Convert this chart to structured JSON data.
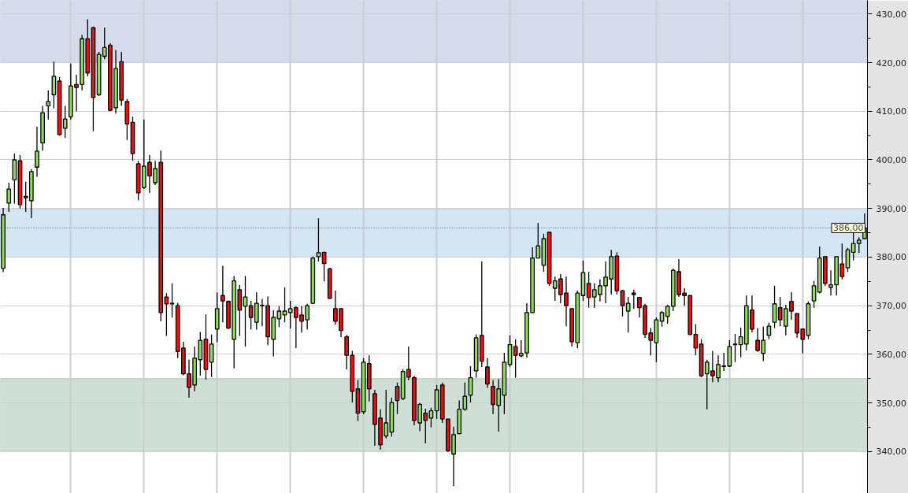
{
  "chart_data": {
    "type": "candlestick",
    "categories": [
      null,
      null,
      null,
      null,
      null,
      null,
      null,
      null,
      null,
      null,
      null,
      null,
      null,
      null,
      null,
      null,
      null,
      null,
      null,
      null,
      null,
      null,
      null,
      null,
      null,
      null,
      null,
      null,
      null,
      null,
      null,
      null,
      null,
      null,
      null,
      null,
      null,
      null,
      null,
      null,
      null,
      null,
      null,
      null,
      null,
      null,
      null,
      null,
      null,
      null,
      null,
      null,
      null,
      null,
      null,
      null,
      null,
      null,
      null,
      null,
      null,
      null,
      null,
      null,
      null,
      null,
      null,
      null,
      null,
      null,
      null,
      null,
      null,
      null,
      null,
      null,
      null,
      null,
      null,
      null,
      null,
      null,
      null,
      null,
      null,
      null,
      null,
      null,
      null,
      null,
      null,
      null,
      null,
      null,
      null,
      null,
      null,
      null,
      null,
      null,
      null,
      null,
      null,
      null,
      null,
      null,
      null,
      null,
      null,
      null,
      null,
      null,
      null,
      null,
      null,
      null,
      null,
      null,
      null,
      null,
      null,
      null,
      null,
      null,
      null,
      null,
      null,
      null,
      null,
      null,
      null,
      null,
      null,
      null,
      null,
      null,
      null,
      null,
      null,
      null,
      null,
      null,
      null,
      null,
      null,
      null,
      null,
      null,
      null,
      null,
      null,
      null,
      null,
      null
    ],
    "ohlc": [
      [
        377.7,
        390.1,
        376.9,
        388.7
      ],
      [
        391.1,
        395.3,
        389.3,
        394.0
      ],
      [
        395.9,
        401.3,
        391.0,
        400.0
      ],
      [
        399.8,
        401.0,
        390.0,
        390.8
      ],
      [
        392.5,
        395.5,
        389.3,
        392.2
      ],
      [
        391.6,
        398.1,
        388.0,
        397.6
      ],
      [
        398.5,
        406.8,
        396.5,
        401.8
      ],
      [
        403.5,
        411.1,
        401.9,
        409.7
      ],
      [
        411.1,
        414.3,
        408.3,
        412.0
      ],
      [
        413.4,
        420.2,
        410.6,
        417.2
      ],
      [
        416.2,
        417.0,
        405.0,
        405.2
      ],
      [
        406.5,
        411.1,
        404.5,
        408.4
      ],
      [
        408.9,
        419.8,
        408.3,
        415.2
      ],
      [
        415.5,
        417.5,
        410.0,
        414.9
      ],
      [
        415.5,
        425.7,
        414.3,
        424.9
      ],
      [
        424.9,
        428.9,
        417.2,
        417.9
      ],
      [
        427.2,
        427.4,
        405.9,
        412.8
      ],
      [
        413.4,
        422.2,
        413.1,
        421.7
      ],
      [
        421.3,
        427.2,
        420.7,
        423.1
      ],
      [
        423.6,
        424.0,
        410.0,
        410.2
      ],
      [
        410.7,
        422.6,
        409.5,
        418.8
      ],
      [
        420.2,
        422.2,
        411.1,
        412.3
      ],
      [
        412.0,
        412.5,
        404.1,
        407.4
      ],
      [
        407.7,
        408.9,
        399.8,
        401.3
      ],
      [
        399.2,
        399.8,
        391.7,
        393.2
      ],
      [
        394.3,
        408.3,
        394.0,
        398.7
      ],
      [
        399.5,
        401.0,
        393.2,
        396.7
      ],
      [
        395.3,
        399.8,
        394.8,
        398.2
      ],
      [
        399.5,
        401.9,
        366.8,
        368.6
      ],
      [
        371.8,
        372.6,
        363.8,
        370.4
      ],
      [
        370.5,
        374.6,
        367.6,
        370.4
      ],
      [
        370.0,
        370.6,
        359.2,
        360.6
      ],
      [
        361.3,
        362.6,
        355.7,
        356.0
      ],
      [
        356.0,
        358.9,
        351.1,
        353.2
      ],
      [
        353.7,
        361.6,
        352.4,
        359.2
      ],
      [
        358.9,
        364.6,
        355.6,
        362.9
      ],
      [
        363.1,
        368.2,
        354.8,
        356.9
      ],
      [
        358.4,
        364.1,
        355.3,
        362.1
      ],
      [
        365.2,
        372.7,
        362.5,
        369.4
      ],
      [
        372.1,
        378.2,
        366.6,
        371.0
      ],
      [
        370.9,
        371.1,
        365.2,
        365.4
      ],
      [
        363.1,
        376.1,
        357.1,
        375.1
      ],
      [
        373.3,
        374.3,
        363.8,
        369.1
      ],
      [
        369.9,
        376.1,
        361.6,
        371.8
      ],
      [
        370.0,
        371.0,
        365.1,
        367.6
      ],
      [
        366.6,
        372.8,
        365.1,
        370.5
      ],
      [
        370.0,
        371.4,
        365.8,
        370.1
      ],
      [
        370.0,
        371.9,
        361.9,
        363.6
      ],
      [
        363.1,
        369.1,
        359.6,
        367.6
      ],
      [
        367.3,
        369.9,
        365.6,
        368.9
      ],
      [
        368.1,
        373.8,
        366.6,
        368.9
      ],
      [
        368.6,
        371.0,
        365.3,
        369.4
      ],
      [
        369.6,
        369.9,
        361.3,
        367.6
      ],
      [
        368.1,
        369.9,
        364.5,
        366.8
      ],
      [
        367.1,
        370.4,
        365.1,
        370.0
      ],
      [
        370.5,
        380.1,
        370.4,
        379.8
      ],
      [
        380.1,
        388.0,
        379.1,
        380.9
      ],
      [
        381.0,
        381.0,
        375.0,
        378.7
      ],
      [
        377.6,
        377.8,
        371.4,
        371.5
      ],
      [
        369.4,
        373.1,
        366.1,
        366.8
      ],
      [
        369.4,
        369.4,
        363.5,
        364.9
      ],
      [
        363.6,
        364.0,
        356.9,
        359.8
      ],
      [
        359.8,
        360.7,
        350.1,
        352.4
      ],
      [
        352.9,
        354.7,
        346.3,
        347.9
      ],
      [
        348.2,
        359.2,
        347.7,
        358.4
      ],
      [
        358.1,
        359.8,
        350.3,
        352.9
      ],
      [
        351.9,
        352.7,
        341.2,
        345.6
      ],
      [
        346.9,
        348.7,
        340.4,
        341.4
      ],
      [
        343.2,
        352.7,
        342.7,
        345.9
      ],
      [
        344.0,
        351.1,
        343.1,
        350.1
      ],
      [
        353.4,
        354.2,
        347.7,
        350.5
      ],
      [
        350.9,
        356.9,
        350.6,
        356.5
      ],
      [
        356.9,
        361.6,
        354.7,
        355.3
      ],
      [
        355.2,
        355.6,
        345.4,
        346.4
      ],
      [
        345.9,
        350.0,
        344.2,
        349.7
      ],
      [
        347.9,
        348.8,
        341.7,
        346.4
      ],
      [
        346.9,
        349.0,
        345.0,
        348.4
      ],
      [
        348.4,
        353.7,
        346.7,
        352.7
      ],
      [
        353.7,
        354.2,
        345.9,
        346.7
      ],
      [
        346.7,
        346.7,
        339.9,
        340.2
      ],
      [
        339.5,
        345.1,
        332.9,
        343.5
      ],
      [
        343.7,
        350.5,
        343.6,
        348.7
      ],
      [
        348.7,
        354.2,
        348.4,
        351.4
      ],
      [
        351.6,
        357.6,
        350.1,
        355.2
      ],
      [
        356.6,
        364.1,
        355.2,
        363.4
      ],
      [
        363.9,
        379.1,
        357.4,
        358.6
      ],
      [
        357.4,
        359.2,
        353.1,
        353.9
      ],
      [
        353.4,
        354.7,
        347.7,
        349.7
      ],
      [
        349.5,
        354.9,
        344.1,
        352.9
      ],
      [
        351.6,
        360.3,
        347.7,
        358.4
      ],
      [
        357.9,
        363.9,
        357.4,
        362.0
      ],
      [
        361.6,
        363.1,
        355.2,
        359.8
      ],
      [
        359.7,
        362.9,
        359.4,
        360.2
      ],
      [
        360.3,
        370.5,
        359.3,
        368.6
      ],
      [
        368.6,
        382.0,
        368.5,
        379.8
      ],
      [
        379.8,
        387.0,
        379.7,
        382.3
      ],
      [
        378.3,
        384.8,
        377.0,
        383.8
      ],
      [
        385.1,
        385.1,
        374.1,
        374.6
      ],
      [
        373.6,
        376.0,
        371.0,
        375.1
      ],
      [
        375.5,
        376.5,
        370.5,
        372.3
      ],
      [
        372.6,
        376.0,
        365.8,
        370.0
      ],
      [
        369.4,
        369.4,
        361.6,
        362.6
      ],
      [
        362.4,
        373.1,
        361.3,
        372.6
      ],
      [
        372.1,
        379.3,
        371.0,
        376.8
      ],
      [
        374.6,
        377.0,
        369.6,
        371.7
      ],
      [
        371.8,
        374.6,
        369.6,
        373.3
      ],
      [
        372.3,
        375.4,
        370.9,
        374.1
      ],
      [
        374.1,
        379.1,
        370.5,
        375.9
      ],
      [
        375.5,
        381.5,
        372.3,
        380.1
      ],
      [
        380.2,
        381.0,
        372.3,
        373.1
      ],
      [
        373.1,
        373.3,
        367.8,
        370.0
      ],
      [
        368.9,
        371.8,
        364.5,
        370.5
      ],
      [
        372.6,
        373.3,
        369.4,
        372.3
      ],
      [
        371.7,
        371.8,
        367.6,
        369.6
      ],
      [
        370.0,
        370.4,
        363.4,
        364.1
      ],
      [
        364.4,
        365.4,
        359.8,
        362.9
      ],
      [
        362.4,
        367.6,
        358.4,
        367.1
      ],
      [
        366.8,
        368.9,
        365.7,
        368.6
      ],
      [
        367.8,
        370.2,
        366.3,
        369.9
      ],
      [
        369.9,
        377.6,
        368.9,
        377.3
      ],
      [
        377.0,
        379.6,
        371.8,
        372.3
      ],
      [
        372.6,
        373.6,
        370.0,
        372.1
      ],
      [
        372.1,
        372.1,
        363.9,
        364.1
      ],
      [
        364.1,
        366.2,
        359.8,
        361.3
      ],
      [
        362.1,
        363.1,
        355.3,
        355.6
      ],
      [
        356.0,
        358.9,
        348.7,
        358.4
      ],
      [
        356.6,
        360.7,
        354.3,
        355.6
      ],
      [
        355.2,
        359.8,
        354.3,
        357.9
      ],
      [
        357.5,
        360.3,
        356.6,
        357.6
      ],
      [
        357.6,
        362.9,
        357.4,
        361.6
      ],
      [
        362.0,
        364.2,
        358.4,
        362.1
      ],
      [
        362.0,
        365.5,
        359.4,
        363.6
      ],
      [
        362.1,
        372.1,
        360.8,
        370.0
      ],
      [
        369.1,
        372.1,
        364.5,
        365.2
      ],
      [
        362.9,
        365.4,
        360.5,
        360.8
      ],
      [
        360.2,
        365.7,
        358.6,
        362.9
      ],
      [
        363.9,
        366.5,
        363.1,
        365.8
      ],
      [
        366.6,
        374.1,
        365.4,
        370.4
      ],
      [
        369.6,
        371.8,
        365.8,
        367.1
      ],
      [
        365.8,
        370.2,
        363.9,
        369.4
      ],
      [
        370.9,
        372.8,
        367.1,
        368.9
      ],
      [
        368.4,
        368.4,
        363.4,
        364.4
      ],
      [
        365.2,
        365.2,
        360.2,
        363.1
      ],
      [
        363.9,
        370.9,
        363.1,
        370.4
      ],
      [
        371.0,
        375.1,
        369.6,
        374.1
      ],
      [
        372.8,
        382.2,
        372.5,
        379.8
      ],
      [
        380.1,
        380.1,
        374.1,
        374.6
      ],
      [
        373.8,
        377.3,
        372.1,
        374.3
      ],
      [
        374.3,
        380.1,
        372.1,
        380.1
      ],
      [
        378.6,
        382.8,
        375.4,
        376.0
      ],
      [
        377.8,
        381.9,
        377.0,
        381.5
      ],
      [
        381.0,
        385.3,
        379.3,
        382.8
      ],
      [
        382.8,
        384.1,
        380.9,
        383.5
      ],
      [
        383.8,
        389.0,
        383.8,
        386.0
      ]
    ],
    "colors": [
      "#90e060",
      "#90e060",
      "#90e060",
      "#ee1111",
      "#ee1111",
      "#90e060",
      "#90e060",
      "#90e060",
      "#90e060",
      "#90e060",
      "#ee1111",
      "#90e060",
      "#90e060",
      "#ee1111",
      "#90e060",
      "#ee1111",
      "#ee1111",
      "#90e060",
      "#90e060",
      "#ee1111",
      "#90e060",
      "#ee1111",
      "#ee1111",
      "#ee1111",
      "#ee1111",
      "#90e060",
      "#ee1111",
      "#90e060",
      "#ee1111",
      "#ee1111",
      "#ee1111",
      "#ee1111",
      "#ee1111",
      "#ee1111",
      "#90e060",
      "#90e060",
      "#ee1111",
      "#90e060",
      "#90e060",
      "#ee1111",
      "#ee1111",
      "#90e060",
      "#ee1111",
      "#90e060",
      "#ee1111",
      "#90e060",
      "#90e060",
      "#ee1111",
      "#90e060",
      "#90e060",
      "#90e060",
      "#90e060",
      "#ee1111",
      "#ee1111",
      "#90e060",
      "#90e060",
      "#90e060",
      "#ee1111",
      "#ee1111",
      "#ee1111",
      "#ee1111",
      "#ee1111",
      "#ee1111",
      "#ee1111",
      "#90e060",
      "#ee1111",
      "#ee1111",
      "#ee1111",
      "#90e060",
      "#90e060",
      "#ee1111",
      "#90e060",
      "#ee1111",
      "#ee1111",
      "#90e060",
      "#ee1111",
      "#90e060",
      "#90e060",
      "#ee1111",
      "#ee1111",
      "#90e060",
      "#90e060",
      "#90e060",
      "#90e060",
      "#90e060",
      "#ee1111",
      "#ee1111",
      "#ee1111",
      "#90e060",
      "#90e060",
      "#90e060",
      "#ee1111",
      "#90e060",
      "#90e060",
      "#90e060",
      "#90e060",
      "#90e060",
      "#ee1111",
      "#90e060",
      "#ee1111",
      "#ee1111",
      "#ee1111",
      "#90e060",
      "#90e060",
      "#ee1111",
      "#90e060",
      "#90e060",
      "#90e060",
      "#90e060",
      "#ee1111",
      "#ee1111",
      "#90e060",
      "#ee1111",
      "#ee1111",
      "#ee1111",
      "#ee1111",
      "#90e060",
      "#90e060",
      "#90e060",
      "#90e060",
      "#ee1111",
      "#ee1111",
      "#ee1111",
      "#ee1111",
      "#ee1111",
      "#90e060",
      "#ee1111",
      "#90e060",
      "#90e060",
      "#90e060",
      "#90e060",
      "#90e060",
      "#90e060",
      "#ee1111",
      "#ee1111",
      "#90e060",
      "#90e060",
      "#90e060",
      "#ee1111",
      "#90e060",
      "#ee1111",
      "#ee1111",
      "#ee1111",
      "#90e060",
      "#90e060",
      "#90e060",
      "#ee1111",
      "#90e060",
      "#90e060",
      "#ee1111",
      "#90e060",
      "#90e060",
      "#90e060",
      "#90e060"
    ],
    "ylim": [
      331.4,
      432.8
    ],
    "yticks": [
      {
        "value": 340,
        "label": "340,00"
      },
      {
        "value": 345,
        "label": null
      },
      {
        "value": 350,
        "label": "350,00"
      },
      {
        "value": 355,
        "label": null
      },
      {
        "value": 360,
        "label": "360,00"
      },
      {
        "value": 365,
        "label": null
      },
      {
        "value": 370,
        "label": "370,00"
      },
      {
        "value": 375,
        "label": null
      },
      {
        "value": 380,
        "label": "380,00"
      },
      {
        "value": 385,
        "label": null
      },
      {
        "value": 390,
        "label": "390,00"
      },
      {
        "value": 395,
        "label": null
      },
      {
        "value": 400,
        "label": "400,00"
      },
      {
        "value": 405,
        "label": null
      },
      {
        "value": 410,
        "label": "410,00"
      },
      {
        "value": 415,
        "label": null
      },
      {
        "value": 420,
        "label": "420,00"
      },
      {
        "value": 425,
        "label": null
      },
      {
        "value": 430,
        "label": "430,00"
      }
    ],
    "tick_labels": "y",
    "grid": true,
    "bands": [
      {
        "axis": "y",
        "from": 420,
        "to": 432.8,
        "color": "#d5dbea"
      },
      {
        "axis": "y",
        "from": 380,
        "to": 390,
        "color": "#d4e5f3"
      },
      {
        "axis": "y",
        "from": 340,
        "to": 355,
        "color": "#cfdfd6"
      }
    ],
    "ref_lines": [
      {
        "axis": "y",
        "value": 386,
        "label": "386,00",
        "color": "#ee2222",
        "line_style": "dotted"
      }
    ]
  }
}
